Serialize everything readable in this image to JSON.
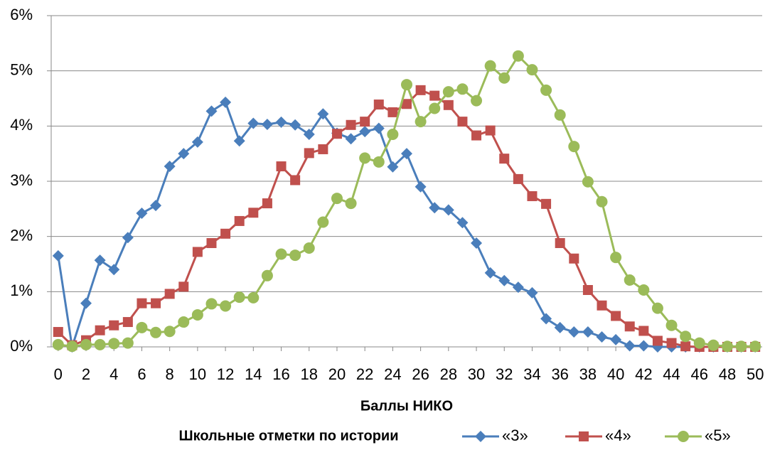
{
  "chart_data": {
    "type": "line",
    "x_label": "Баллы НИКО",
    "legend_title": "Школьные отметки по истории",
    "legend": "bottom",
    "grid": true,
    "x": [
      0,
      1,
      2,
      3,
      4,
      5,
      6,
      7,
      8,
      9,
      10,
      11,
      12,
      13,
      14,
      15,
      16,
      17,
      18,
      19,
      20,
      21,
      22,
      23,
      24,
      25,
      26,
      27,
      28,
      29,
      30,
      31,
      32,
      33,
      34,
      35,
      36,
      37,
      38,
      39,
      40,
      41,
      42,
      43,
      44,
      45,
      46,
      47,
      48,
      49,
      50
    ],
    "xlim": [
      -0.5,
      50.5
    ],
    "xticks": [
      0,
      2,
      4,
      6,
      8,
      10,
      12,
      14,
      16,
      18,
      20,
      22,
      24,
      26,
      28,
      30,
      32,
      34,
      36,
      38,
      40,
      42,
      44,
      46,
      48,
      50
    ],
    "ylim": [
      0,
      6
    ],
    "yticks": [
      {
        "value": 0,
        "label": "0%"
      },
      {
        "value": 1,
        "label": "1%"
      },
      {
        "value": 2,
        "label": "2%"
      },
      {
        "value": 3,
        "label": "3%"
      },
      {
        "value": 4,
        "label": "4%"
      },
      {
        "value": 5,
        "label": "5%"
      },
      {
        "value": 6,
        "label": "6%"
      }
    ],
    "series": [
      {
        "name": "«3»",
        "color": "#4a7ebb",
        "marker": "diamond",
        "values": [
          1.65,
          0,
          0.79,
          1.57,
          1.4,
          1.98,
          2.42,
          2.56,
          3.27,
          3.5,
          3.71,
          4.27,
          4.43,
          3.73,
          4.05,
          4.03,
          4.07,
          4.02,
          3.85,
          4.22,
          3.87,
          3.77,
          3.9,
          3.96,
          3.26,
          3.5,
          2.9,
          2.52,
          2.48,
          2.25,
          1.88,
          1.34,
          1.2,
          1.08,
          0.98,
          0.51,
          0.35,
          0.27,
          0.27,
          0.18,
          0.13,
          0.02,
          0.02,
          0,
          0,
          0,
          0,
          0,
          0,
          0,
          0
        ]
      },
      {
        "name": "«4»",
        "color": "#c0504d",
        "marker": "square",
        "values": [
          0.27,
          0.03,
          0.12,
          0.3,
          0.39,
          0.45,
          0.79,
          0.79,
          0.96,
          1.09,
          1.72,
          1.88,
          2.05,
          2.28,
          2.43,
          2.6,
          3.27,
          3.02,
          3.51,
          3.58,
          3.86,
          4.02,
          4.08,
          4.39,
          4.25,
          4.4,
          4.65,
          4.55,
          4.38,
          4.08,
          3.83,
          3.92,
          3.41,
          3.04,
          2.73,
          2.59,
          1.88,
          1.6,
          1.03,
          0.75,
          0.56,
          0.37,
          0.29,
          0.11,
          0.07,
          0.01,
          0,
          0,
          0,
          0,
          0
        ]
      },
      {
        "name": "«5»",
        "color": "#9bbb59",
        "marker": "circle",
        "values": [
          0.04,
          0.01,
          0.04,
          0.04,
          0.06,
          0.07,
          0.35,
          0.26,
          0.28,
          0.45,
          0.58,
          0.78,
          0.74,
          0.9,
          0.89,
          1.29,
          1.68,
          1.66,
          1.79,
          2.26,
          2.69,
          2.6,
          3.42,
          3.35,
          3.85,
          4.75,
          4.08,
          4.32,
          4.62,
          4.67,
          4.46,
          5.09,
          4.87,
          5.27,
          5.02,
          4.65,
          4.2,
          3.63,
          2.99,
          2.63,
          1.62,
          1.21,
          1.03,
          0.7,
          0.39,
          0.19,
          0.07,
          0.03,
          0.01,
          0.01,
          0.01
        ]
      }
    ]
  }
}
